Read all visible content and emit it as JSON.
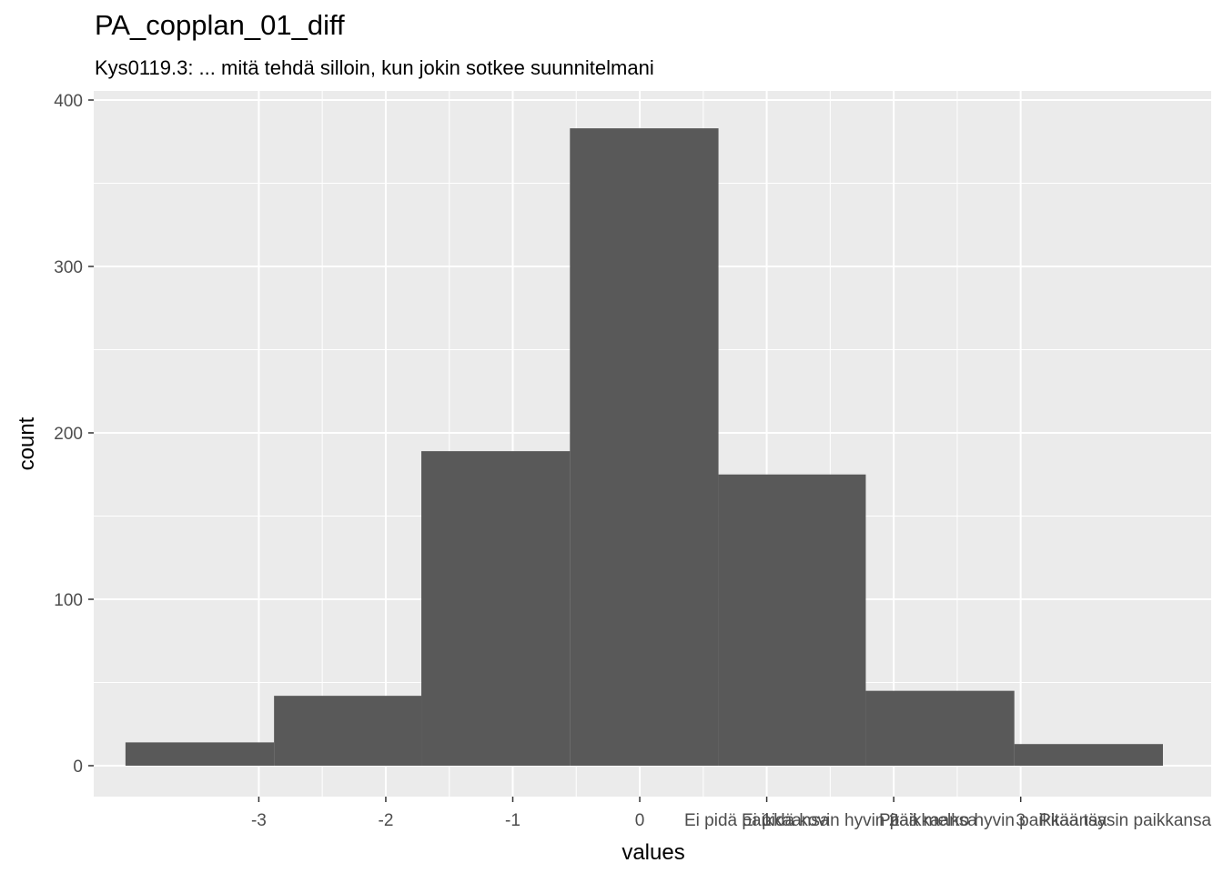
{
  "chart_data": {
    "type": "bar",
    "title": "PA_copplan_01_diff",
    "subtitle": "Kys0119.3: ... mitä tehdä silloin, kun jokin sotkee suunnitelmani",
    "xlabel": "values",
    "ylabel": "count",
    "xlim": [
      -4.3,
      4.5
    ],
    "ylim": [
      0,
      400
    ],
    "x_ticks": [
      "-3",
      "-2",
      "-1",
      "0",
      "1",
      "2",
      "3"
    ],
    "x_tick_values": [
      -3,
      -2,
      -1,
      0,
      1,
      2,
      3
    ],
    "x_extra_labels": [
      "Ei pidä paikkaansa",
      "Ei pidä kovin hyvin paikkaansa",
      "Pitää melko hyvin paikkaansa",
      "Pitää täysin paikkansa"
    ],
    "y_ticks": [
      0,
      100,
      200,
      300,
      400
    ],
    "bins": [
      {
        "x0": -4.05,
        "x1": -2.88,
        "count": 14
      },
      {
        "x0": -2.88,
        "x1": -1.72,
        "count": 42
      },
      {
        "x0": -1.72,
        "x1": -0.55,
        "count": 189
      },
      {
        "x0": -0.55,
        "x1": 0.62,
        "count": 383
      },
      {
        "x0": 0.62,
        "x1": 1.78,
        "count": 175
      },
      {
        "x0": 1.78,
        "x1": 2.95,
        "count": 45
      },
      {
        "x0": 2.95,
        "x1": 4.12,
        "count": 13
      }
    ],
    "bar_color": "#595959",
    "panel_color": "#ebebeb",
    "grid": true
  }
}
